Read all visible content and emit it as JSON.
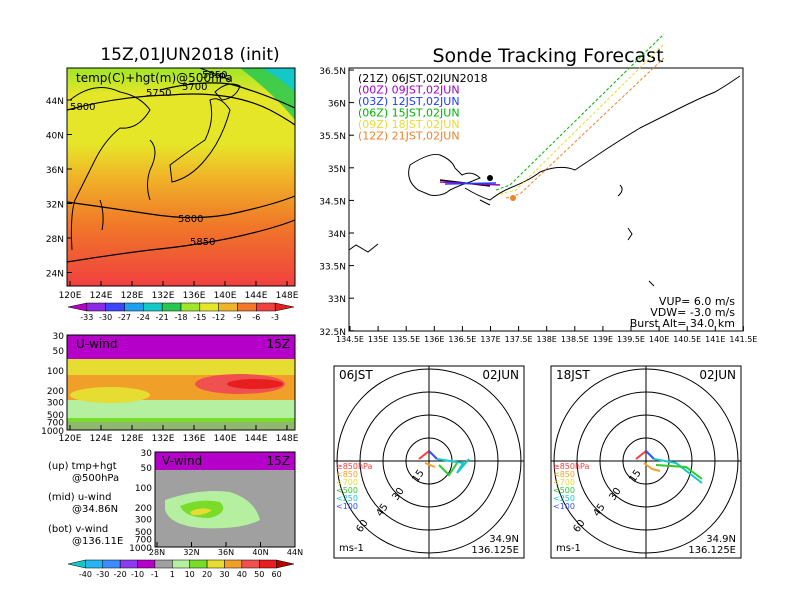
{
  "left_title": "15Z,01JUN2018 (init)",
  "right_title": "Sonde Tracking Forecast",
  "map_panel": {
    "label": "temp(C)+hgt(m)@500hPa",
    "contours": [
      "5850",
      "5750",
      "5700",
      "5800",
      "5800",
      "5850"
    ],
    "lat_ticks": [
      "44N",
      "40N",
      "36N",
      "32N",
      "28N",
      "24N"
    ],
    "lon_ticks": [
      "120E",
      "124E",
      "128E",
      "132E",
      "136E",
      "140E",
      "144E",
      "148E"
    ]
  },
  "temp_colorbar": [
    "-33",
    "-30",
    "-27",
    "-24",
    "-21",
    "-18",
    "-15",
    "-12",
    "-9",
    "-6",
    "-3"
  ],
  "uwind_panel": {
    "label": "U-wind",
    "time": "15Z",
    "y_ticks": [
      "30",
      "50",
      "100",
      "200",
      "300",
      "500",
      "700",
      "1000"
    ],
    "x_ticks": [
      "120E",
      "124E",
      "128E",
      "132E",
      "136E",
      "140E",
      "144E",
      "148E"
    ]
  },
  "vwind_panel": {
    "label": "V-wind",
    "time": "15Z",
    "y_ticks": [
      "30",
      "50",
      "100",
      "200",
      "300",
      "500",
      "700",
      "1000"
    ],
    "x_ticks": [
      "28N",
      "32N",
      "36N",
      "40N",
      "44N"
    ]
  },
  "notes": [
    {
      "a": "(up) tmp+hgt",
      "b": "@500hPa"
    },
    {
      "a": "(mid) u-wind",
      "b": "@34.86N"
    },
    {
      "a": "(bot) v-wind",
      "b": "@136.11E"
    }
  ],
  "wind_colorbar": [
    "-40",
    "-30",
    "-20",
    "-10",
    "-1",
    "1",
    "10",
    "20",
    "30",
    "40",
    "50",
    "60"
  ],
  "track_map": {
    "legend": [
      {
        "label": "(21Z)  06JST,02JUN2018",
        "color": "#000000"
      },
      {
        "label": "(00Z)  09JST,02JUN",
        "color": "#a000c8"
      },
      {
        "label": "(03Z)  12JST,02JUN",
        "color": "#1e3cff"
      },
      {
        "label": "(06Z)  15JST,02JUN",
        "color": "#00b400"
      },
      {
        "label": "(09Z)  18JST,02JUN",
        "color": "#e6dc32"
      },
      {
        "label": "(12Z)  21JST,02JUN",
        "color": "#f08228"
      }
    ],
    "lat_ticks": [
      "36.5N",
      "36N",
      "35.5N",
      "35N",
      "34.5N",
      "34N",
      "33.5N",
      "33N",
      "32.5N"
    ],
    "lon_ticks": [
      "134.5E",
      "135E",
      "135.5E",
      "136E",
      "136.5E",
      "137E",
      "137.5E",
      "138E",
      "138.5E",
      "139E",
      "139.5E",
      "140E",
      "140.5E",
      "141E",
      "141.5E"
    ],
    "params": [
      "VUP=  6.0 m/s",
      "VDW= -3.0 m/s",
      "Burst Alt= 34.0 km"
    ]
  },
  "hodographs": [
    {
      "time": "06JST",
      "date": "02JUN",
      "lat": "34.9N",
      "lon": "136.125E",
      "unit": "ms-1",
      "ring_labels": [
        "15",
        "30",
        "45",
        "60"
      ],
      "levels": [
        {
          "label": "≥850hPa",
          "color": "#ff3c3c"
        },
        {
          "label": "<850",
          "color": "#f5a023"
        },
        {
          "label": "<700",
          "color": "#e6dc32"
        },
        {
          "label": "<500",
          "color": "#32c832"
        },
        {
          "label": "<250",
          "color": "#14c8c8"
        },
        {
          "label": "<100",
          "color": "#3250ff"
        }
      ]
    },
    {
      "time": "18JST",
      "date": "02JUN",
      "lat": "34.9N",
      "lon": "136.125E",
      "unit": "ms-1",
      "ring_labels": [
        "15",
        "30",
        "45",
        "60"
      ],
      "levels": [
        {
          "label": "≥850hPa",
          "color": "#ff3c3c"
        },
        {
          "label": "<850",
          "color": "#f5a023"
        },
        {
          "label": "<700",
          "color": "#e6dc32"
        },
        {
          "label": "<500",
          "color": "#32c832"
        },
        {
          "label": "<250",
          "color": "#14c8c8"
        },
        {
          "label": "<100",
          "color": "#3250ff"
        }
      ]
    }
  ],
  "chart_data": {
    "type": "table",
    "temp_scale_colors": [
      "#b400c8",
      "#8c28e6",
      "#3c46ff",
      "#1ea0f0",
      "#14c8c8",
      "#28c850",
      "#a0e628",
      "#e6e628",
      "#f0b428",
      "#f07828",
      "#f04040"
    ],
    "wind_scale_colors": [
      "#14c8c8",
      "#28b4f0",
      "#3c8cff",
      "#8c3cf0",
      "#b400c8",
      "#a0a0a0",
      "#b4f0a0",
      "#78dc28",
      "#e6dc32",
      "#f0a028",
      "#f05050",
      "#e61e1e"
    ]
  }
}
